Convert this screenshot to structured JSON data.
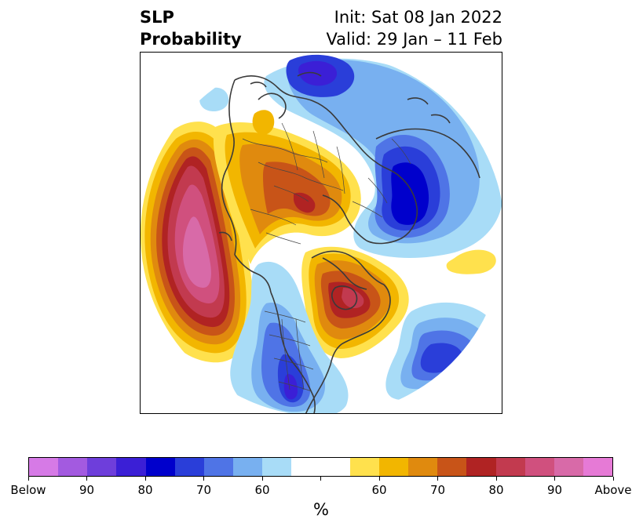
{
  "title": {
    "line1": "SLP",
    "line2": "Probability",
    "init": "Init: Sat 08 Jan 2022",
    "valid": "Valid: 29 Jan – 11 Feb"
  },
  "map": {
    "projection": "north-polar-stereographic",
    "field": "sea-level-pressure-probability"
  },
  "colorbar": {
    "unit": "%",
    "tick_labels": [
      "Below",
      "90",
      "80",
      "70",
      "60",
      "60",
      "70",
      "80",
      "90",
      "Above"
    ],
    "colors": [
      "#d67ae6",
      "#a35ae0",
      "#6e3edb",
      "#3b1fd6",
      "#0000cc",
      "#2a3ed9",
      "#4f74e6",
      "#78b0f0",
      "#a8dcf7",
      "#ffffff",
      "#ffffff",
      "#ffe14d",
      "#f2b600",
      "#e08a0e",
      "#c85418",
      "#b02323",
      "#c23a4f",
      "#d0507e",
      "#d86aa8",
      "#e67ad6"
    ]
  }
}
